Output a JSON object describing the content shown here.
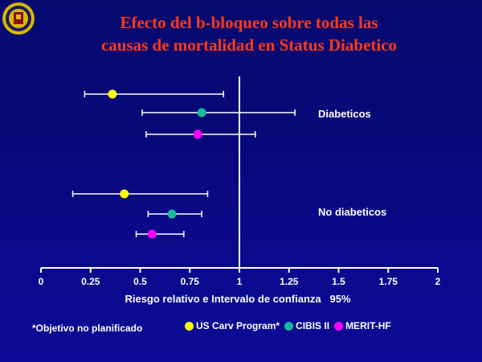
{
  "title_lines": [
    "Efecto del b-bloqueo sobre todas las",
    "causas de mortalidad en Status Diabetico"
  ],
  "note": "*Objetivo no planificado",
  "colors": {
    "yellow": "#ffff00",
    "teal": "#19b99a",
    "magenta": "#ff00ff",
    "title": "#ff3a1a",
    "axis": "#ffffff"
  },
  "chart_data": {
    "type": "scatter",
    "title": "Efecto del b-bloqueo sobre todas las causas de mortalidad en Status Diabetico",
    "xlabel": "Riesgo relativo e Intervalo de confianza   95%",
    "xlim": [
      0,
      2
    ],
    "x_ticks": [
      "0",
      "0.25",
      "0.5",
      "0.75",
      "1",
      "1.25",
      "1.5",
      "1.75",
      "2"
    ],
    "reference_line": 1,
    "group_labels": [
      "Diabeticos",
      "No diabeticos"
    ],
    "series": [
      {
        "name": "US Carv Program*",
        "color": "#ffff00",
        "points": [
          {
            "group": "Diabeticos",
            "estimate": 0.36,
            "lower": 0.22,
            "upper": 0.92
          },
          {
            "group": "No diabeticos",
            "estimate": 0.42,
            "lower": 0.16,
            "upper": 0.84
          }
        ]
      },
      {
        "name": "CIBIS II",
        "color": "#19b99a",
        "points": [
          {
            "group": "Diabeticos",
            "estimate": 0.81,
            "lower": 0.51,
            "upper": 1.28
          },
          {
            "group": "No diabeticos",
            "estimate": 0.66,
            "lower": 0.54,
            "upper": 0.81
          }
        ]
      },
      {
        "name": "MERIT-HF",
        "color": "#ff00ff",
        "points": [
          {
            "group": "Diabeticos",
            "estimate": 0.79,
            "lower": 0.53,
            "upper": 1.08
          },
          {
            "group": "No diabeticos",
            "estimate": 0.56,
            "lower": 0.48,
            "upper": 0.72
          }
        ]
      }
    ]
  }
}
